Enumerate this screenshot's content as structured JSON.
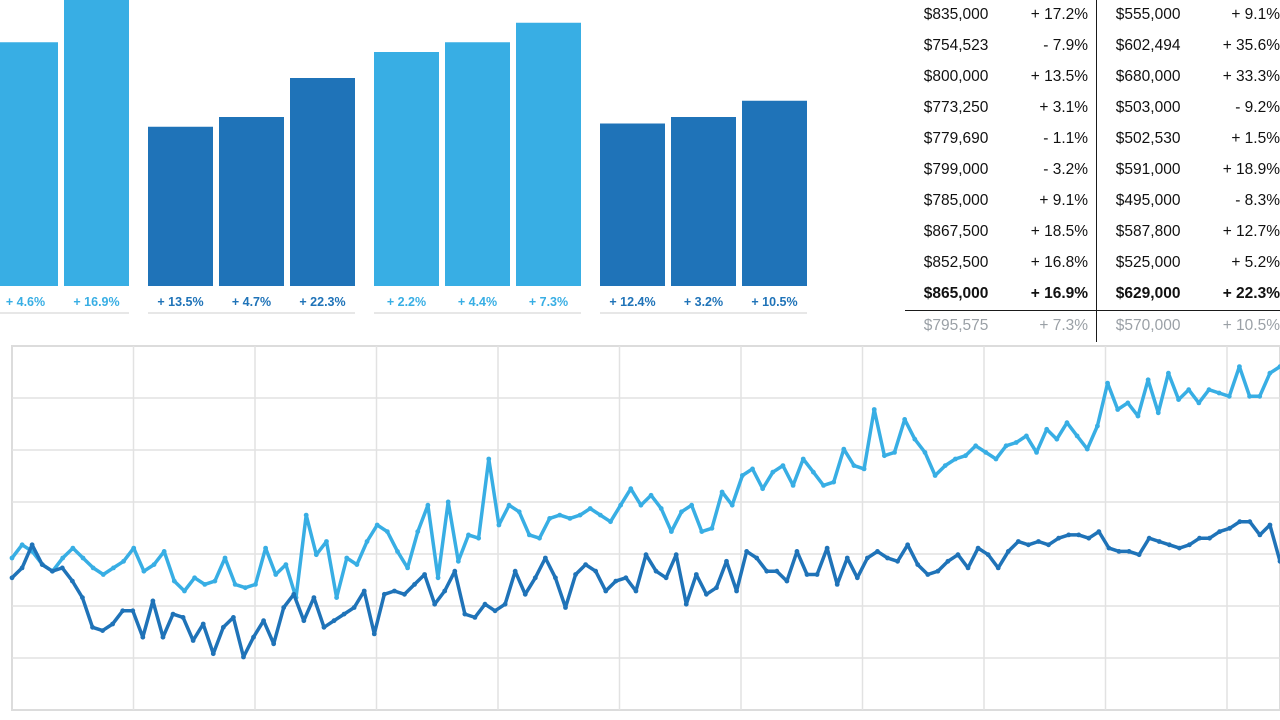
{
  "chart_data": [
    {
      "type": "bar",
      "ylim": [
        0,
        100
      ],
      "groups": [
        {
          "color": "#38aee4",
          "bars": [
            {
              "value": 75,
              "label": "+ 4.6%"
            },
            {
              "value": 88,
              "label": "+ 16.9%"
            }
          ]
        },
        {
          "color": "#1f73b8",
          "bars": [
            {
              "value": 49,
              "label": "+ 13.5%"
            },
            {
              "value": 52,
              "label": "+ 4.7%"
            },
            {
              "value": 64,
              "label": "+ 22.3%"
            }
          ]
        },
        {
          "color": "#38aee4",
          "bars": [
            {
              "value": 72,
              "label": "+ 2.2%"
            },
            {
              "value": 75,
              "label": "+ 4.4%"
            },
            {
              "value": 81,
              "label": "+ 7.3%"
            }
          ]
        },
        {
          "color": "#1f73b8",
          "bars": [
            {
              "value": 50,
              "label": "+ 12.4%"
            },
            {
              "value": 52,
              "label": "+ 3.2%"
            },
            {
              "value": 57,
              "label": "+ 10.5%"
            }
          ]
        }
      ]
    },
    {
      "type": "table",
      "rows": [
        [
          "$835,000",
          "+ 17.2%",
          "$555,000",
          "+ 9.1%"
        ],
        [
          "$754,523",
          "- 7.9%",
          "$602,494",
          "+ 35.6%"
        ],
        [
          "$800,000",
          "+ 13.5%",
          "$680,000",
          "+ 33.3%"
        ],
        [
          "$773,250",
          "+ 3.1%",
          "$503,000",
          "- 9.2%"
        ],
        [
          "$779,690",
          "- 1.1%",
          "$502,530",
          "+ 1.5%"
        ],
        [
          "$799,000",
          "- 3.2%",
          "$591,000",
          "+ 18.9%"
        ],
        [
          "$785,000",
          "+ 9.1%",
          "$495,000",
          "- 8.3%"
        ],
        [
          "$867,500",
          "+ 18.5%",
          "$587,800",
          "+ 12.7%"
        ],
        [
          "$852,500",
          "+ 16.8%",
          "$525,000",
          "+ 5.2%"
        ]
      ],
      "bold_row": [
        "$865,000",
        "+ 16.9%",
        "$629,000",
        "+ 22.3%"
      ],
      "total_row": [
        "$795,575",
        "+ 7.3%",
        "$570,000",
        "+ 10.5%"
      ]
    },
    {
      "type": "line",
      "ylim": [
        0,
        100
      ],
      "grid": true,
      "series": [
        {
          "color": "#38aee4",
          "values": [
            40,
            44,
            42,
            38,
            36,
            40,
            43,
            40,
            37,
            35,
            37,
            39,
            43,
            36,
            38,
            42,
            33,
            30,
            34,
            32,
            33,
            40,
            32,
            31,
            32,
            43,
            35,
            38,
            28,
            53,
            41,
            45,
            28,
            40,
            38,
            45,
            50,
            48,
            42,
            37,
            48,
            56,
            34,
            57,
            39,
            47,
            46,
            70,
            50,
            56,
            54,
            47,
            46,
            52,
            53,
            52,
            53,
            55,
            53,
            51,
            56,
            61,
            56,
            59,
            55,
            48,
            54,
            56,
            48,
            49,
            60,
            56,
            65,
            67,
            61,
            66,
            68,
            62,
            70,
            66,
            62,
            63,
            73,
            68,
            67,
            85,
            71,
            72,
            82,
            76,
            72,
            65,
            68,
            70,
            71,
            74,
            72,
            70,
            74,
            75,
            77,
            72,
            79,
            76,
            81,
            77,
            73,
            80,
            93,
            85,
            87,
            83,
            94,
            84,
            96,
            88,
            91,
            87,
            91,
            90,
            89,
            98,
            89,
            89,
            96,
            98
          ]
        },
        {
          "color": "#1f73b8",
          "values": [
            34,
            37,
            44,
            38,
            36,
            37,
            33,
            28,
            19,
            18,
            20,
            24,
            24,
            16,
            27,
            16,
            23,
            22,
            15,
            20,
            11,
            19,
            22,
            10,
            16,
            21,
            14,
            25,
            29,
            21,
            28,
            19,
            21,
            23,
            25,
            30,
            17,
            29,
            30,
            29,
            32,
            35,
            26,
            30,
            36,
            23,
            22,
            26,
            24,
            26,
            36,
            29,
            34,
            40,
            34,
            25,
            35,
            38,
            36,
            30,
            33,
            34,
            30,
            41,
            36,
            34,
            41,
            26,
            35,
            29,
            31,
            39,
            30,
            42,
            40,
            36,
            36,
            33,
            42,
            35,
            35,
            43,
            32,
            40,
            34,
            40,
            42,
            40,
            39,
            44,
            38,
            35,
            36,
            39,
            41,
            37,
            43,
            41,
            37,
            42,
            45,
            44,
            45,
            44,
            46,
            47,
            47,
            46,
            48,
            43,
            42,
            42,
            41,
            46,
            45,
            44,
            43,
            44,
            46,
            46,
            48,
            49,
            51,
            51,
            47,
            50,
            39
          ]
        }
      ]
    }
  ]
}
